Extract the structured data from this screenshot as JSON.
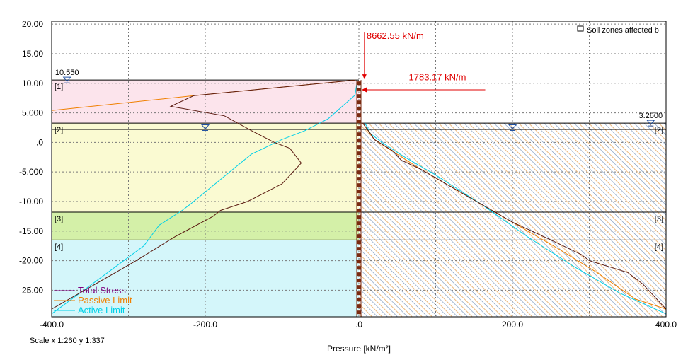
{
  "chart_data": {
    "type": "line",
    "xlabel": "Pressure [kN/m²]",
    "scale_text": "Scale x 1:260  y 1:337",
    "xlim": [
      -400,
      400
    ],
    "ylim": [
      -29.5,
      20.5
    ],
    "xticks": [
      -400,
      -200,
      0,
      200,
      400
    ],
    "xtick_labels": [
      "-400.0",
      "-200.0",
      ".0",
      "200.0",
      "400.0"
    ],
    "yticks": [
      20,
      15,
      10,
      5,
      0,
      -5,
      -10,
      -15,
      -20,
      -25
    ],
    "ytick_labels": [
      "20.00",
      "15.00",
      "10.00",
      "5.000",
      ".0",
      "-5.000",
      "-10.00",
      "-15.00",
      "-20.00",
      "-25.00"
    ],
    "grid": true,
    "legend_position": "bottom-left",
    "legend_top_right": "Soil zones affected b",
    "series": [
      {
        "name": "Total Stress",
        "color": "#800080"
      },
      {
        "name": "Passive Limit",
        "color": "#f08000"
      },
      {
        "name": "Active Limit",
        "color": "#00d0e8"
      }
    ],
    "left_side": {
      "total_stress": {
        "x": [
          -5,
          -215,
          -245,
          -175,
          -140,
          -110,
          -90,
          -75,
          -100,
          -145,
          -180,
          -190,
          -240,
          -290,
          -400
        ],
        "y": [
          10.55,
          7.9,
          6.1,
          4.5,
          2.0,
          0.0,
          -1.0,
          -3.5,
          -7.0,
          -10.0,
          -11.5,
          -12.5,
          -16.0,
          -20.0,
          -28.2
        ]
      },
      "passive_limit": {
        "x": [
          -5,
          -215,
          -400
        ],
        "y": [
          10.55,
          7.9,
          5.4
        ]
      },
      "active_limit": {
        "x": [
          -2,
          -5,
          -40,
          -70,
          -100,
          -140,
          -220,
          -230,
          -260,
          -280,
          -400
        ],
        "y": [
          10.55,
          8.0,
          4.0,
          2.0,
          0.5,
          -2.0,
          -10.5,
          -11.5,
          -14.0,
          -17.5,
          -29.0
        ]
      }
    },
    "right_side": {
      "total_stress": {
        "x": [
          5,
          15,
          20,
          45,
          55,
          80,
          120,
          160,
          200,
          250,
          290,
          300,
          350,
          370,
          400
        ],
        "y": [
          3.26,
          1.5,
          0.5,
          -1.5,
          -3.0,
          -4.5,
          -7.5,
          -10.5,
          -13.5,
          -16.5,
          -19.0,
          -20.0,
          -22.0,
          -24.0,
          -28.2
        ]
      },
      "passive_limit": {
        "x": [
          5,
          20,
          80,
          120,
          180,
          220,
          260,
          310,
          360,
          400
        ],
        "y": [
          3.26,
          0.5,
          -4.5,
          -7.5,
          -12.0,
          -15.0,
          -18.0,
          -22.0,
          -26.5,
          -28.2
        ]
      },
      "active_limit": {
        "x": [
          8,
          15,
          30,
          60,
          100,
          160,
          220,
          280,
          340,
          400
        ],
        "y": [
          3.26,
          1.5,
          0.0,
          -2.5,
          -5.5,
          -10.5,
          -16.0,
          -21.0,
          -25.5,
          -29.0
        ]
      }
    },
    "soil_zones_left": [
      {
        "label": "[1]",
        "top": 10.55,
        "bottom": 3.26,
        "color": "#fce4ec"
      },
      {
        "label": "[2]",
        "top": 3.26,
        "bottom": -11.8,
        "color": "#fafad2"
      },
      {
        "label": "[3]",
        "top": -11.8,
        "bottom": -16.5,
        "color": "#d4f0a8"
      },
      {
        "label": "[4]",
        "top": -16.5,
        "bottom": -29.5,
        "color": "#d4f6fa"
      }
    ],
    "soil_zones_right": [
      {
        "label": "[2]",
        "top": 3.26,
        "bottom": -11.8
      },
      {
        "label": "[3]",
        "top": -11.8,
        "bottom": -16.5
      },
      {
        "label": "[4]",
        "top": -16.5,
        "bottom": -29.5
      }
    ],
    "water_levels": [
      {
        "label": "10.550",
        "x": -380,
        "y": 10.55
      },
      {
        "label": "",
        "x": -200,
        "y": 2.5
      },
      {
        "label": "",
        "x": 200,
        "y": 2.5
      },
      {
        "label": "3.2600",
        "x": 380,
        "y": 3.26
      }
    ],
    "annotations": [
      {
        "text": "8662.55 kN/m",
        "x": 10,
        "y": 17.5
      },
      {
        "text": "1783.17 kN/m",
        "x": 65,
        "y": 10.5
      }
    ]
  }
}
